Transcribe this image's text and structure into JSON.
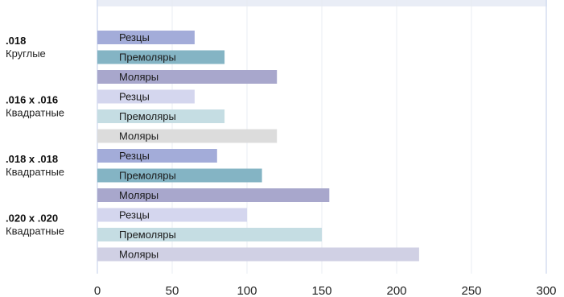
{
  "chart_data": {
    "type": "bar",
    "orientation": "horizontal",
    "xlim": [
      0,
      300
    ],
    "ticks": [
      0,
      50,
      100,
      150,
      200,
      250,
      300
    ],
    "grid": true,
    "groups": [
      {
        "name": ".018",
        "subname": "Круглые",
        "bars": [
          {
            "label": "Резцы",
            "value": 65,
            "color": "#a3acd9"
          },
          {
            "label": "Премоляры",
            "value": 85,
            "color": "#84b4c4"
          },
          {
            "label": "Моляры",
            "value": 120,
            "color": "#a8a7cc"
          }
        ]
      },
      {
        "name": ".016 x .016",
        "subname": "Квадратные",
        "bars": [
          {
            "label": "Резцы",
            "value": 65,
            "color": "#d4d6ee"
          },
          {
            "label": "Премоляры",
            "value": 85,
            "color": "#c5dde3"
          },
          {
            "label": "Моляры",
            "value": 120,
            "color": "#dcdcdc"
          }
        ]
      },
      {
        "name": ".018 x .018",
        "subname": "Квадратные",
        "bars": [
          {
            "label": "Резцы",
            "value": 80,
            "color": "#a3acd9"
          },
          {
            "label": "Премоляры",
            "value": 110,
            "color": "#84b4c4"
          },
          {
            "label": "Моляры",
            "value": 155,
            "color": "#a8a7cc"
          }
        ]
      },
      {
        "name": ".020 x .020",
        "subname": "Квадратные",
        "bars": [
          {
            "label": "Резцы",
            "value": 100,
            "color": "#d4d6ee"
          },
          {
            "label": "Премоляры",
            "value": 150,
            "color": "#c5dde3"
          },
          {
            "label": "Моляры",
            "value": 215,
            "color": "#d0d0e4"
          }
        ]
      }
    ]
  }
}
